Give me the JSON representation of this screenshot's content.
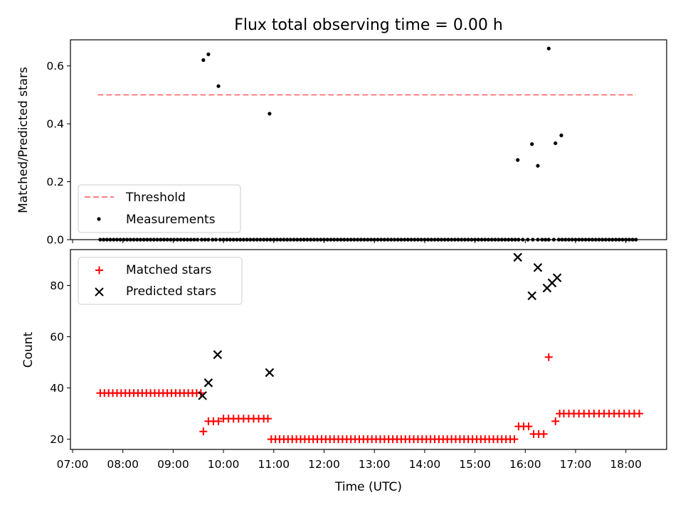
{
  "chart_data": [
    {
      "type": "scatter",
      "title": "Flux total observing time = 0.00 h",
      "xlabel": "",
      "ylabel": "Matched/Predicted stars",
      "ylim": [
        0,
        0.69
      ],
      "yticks": [
        "0.0",
        "0.2",
        "0.4",
        "0.6"
      ],
      "threshold": 0.5,
      "threshold_x_range": [
        "07:30",
        "18:12"
      ],
      "colors": {
        "threshold": "#ff7f7f",
        "measurements": "#000000"
      },
      "legend": {
        "placement": "lower-left",
        "entries": [
          "Threshold",
          "Measurements"
        ]
      },
      "series": [
        {
          "name": "Measurements",
          "x": [
            "07:33",
            "07:37",
            "07:41",
            "07:45",
            "07:49",
            "07:53",
            "07:57",
            "08:01",
            "08:05",
            "08:09",
            "08:13",
            "08:17",
            "08:21",
            "08:25",
            "08:29",
            "08:33",
            "08:37",
            "08:41",
            "08:45",
            "08:49",
            "08:53",
            "08:57",
            "09:01",
            "09:05",
            "09:09",
            "09:13",
            "09:17",
            "09:21",
            "09:25",
            "09:29",
            "09:34",
            "09:38",
            "09:42",
            "09:47",
            "09:51",
            "09:56",
            "10:00",
            "10:04",
            "10:08",
            "10:12",
            "10:16",
            "10:20",
            "10:24",
            "10:28",
            "10:32",
            "10:36",
            "10:40",
            "10:44",
            "10:48",
            "10:52",
            "10:56",
            "11:00",
            "11:04",
            "11:08",
            "11:12",
            "11:16",
            "11:20",
            "11:24",
            "11:28",
            "11:32",
            "11:36",
            "11:40",
            "11:44",
            "11:48",
            "11:52",
            "11:56",
            "12:00",
            "12:04",
            "12:08",
            "12:12",
            "12:16",
            "12:20",
            "12:24",
            "12:28",
            "12:32",
            "12:36",
            "12:40",
            "12:44",
            "12:48",
            "12:52",
            "12:56",
            "13:00",
            "13:04",
            "13:08",
            "13:12",
            "13:16",
            "13:20",
            "13:24",
            "13:28",
            "13:32",
            "13:36",
            "13:40",
            "13:44",
            "13:48",
            "13:52",
            "13:56",
            "14:00",
            "14:04",
            "14:08",
            "14:12",
            "14:16",
            "14:20",
            "14:24",
            "14:28",
            "14:32",
            "14:36",
            "14:40",
            "14:44",
            "14:48",
            "14:52",
            "14:56",
            "15:00",
            "15:04",
            "15:08",
            "15:12",
            "15:16",
            "15:20",
            "15:24",
            "15:28",
            "15:32",
            "15:36",
            "15:40",
            "15:44",
            "15:48",
            "15:52",
            "15:57",
            "16:03",
            "16:09",
            "16:15",
            "16:20",
            "16:24",
            "16:28",
            "16:34",
            "16:40",
            "16:44",
            "16:48",
            "16:52",
            "16:56",
            "17:00",
            "17:04",
            "17:08",
            "17:12",
            "17:16",
            "17:20",
            "17:24",
            "17:28",
            "17:32",
            "17:36",
            "17:40",
            "17:44",
            "17:48",
            "17:52",
            "17:56",
            "18:00",
            "18:04",
            "18:08",
            "18:12",
            "09:36",
            "09:42",
            "09:54",
            "10:55",
            "15:51",
            "16:08",
            "16:15",
            "16:28",
            "16:36",
            "16:43"
          ],
          "y": [
            0,
            0,
            0,
            0,
            0,
            0,
            0,
            0,
            0,
            0,
            0,
            0,
            0,
            0,
            0,
            0,
            0,
            0,
            0,
            0,
            0,
            0,
            0,
            0,
            0,
            0,
            0,
            0,
            0,
            0,
            0,
            0,
            0,
            0,
            0,
            0,
            0,
            0,
            0,
            0,
            0,
            0,
            0,
            0,
            0,
            0,
            0,
            0,
            0,
            0,
            0,
            0,
            0,
            0,
            0,
            0,
            0,
            0,
            0,
            0,
            0,
            0,
            0,
            0,
            0,
            0,
            0,
            0,
            0,
            0,
            0,
            0,
            0,
            0,
            0,
            0,
            0,
            0,
            0,
            0,
            0,
            0,
            0,
            0,
            0,
            0,
            0,
            0,
            0,
            0,
            0,
            0,
            0,
            0,
            0,
            0,
            0,
            0,
            0,
            0,
            0,
            0,
            0,
            0,
            0,
            0,
            0,
            0,
            0,
            0,
            0,
            0,
            0,
            0,
            0,
            0,
            0,
            0,
            0,
            0,
            0,
            0,
            0,
            0,
            0,
            0,
            0,
            0,
            0,
            0,
            0,
            0,
            0,
            0,
            0,
            0,
            0,
            0,
            0,
            0,
            0,
            0,
            0,
            0,
            0,
            0,
            0,
            0,
            0,
            0,
            0,
            0,
            0,
            0,
            0,
            0,
            0,
            0.62,
            0.64,
            0.53,
            0.435,
            0.275,
            0.33,
            0.255,
            0.66,
            0.333,
            0.36
          ]
        },
        {
          "name": "Threshold",
          "x": [
            "07:30",
            "18:12"
          ],
          "y": [
            0.5,
            0.5
          ]
        }
      ]
    },
    {
      "type": "scatter",
      "title": "",
      "xlabel": "Time (UTC)",
      "ylabel": "Count",
      "ylim": [
        16,
        94
      ],
      "yticks": [
        "20",
        "40",
        "60",
        "80"
      ],
      "xticks": [
        "07:00",
        "08:00",
        "09:00",
        "10:00",
        "11:00",
        "12:00",
        "13:00",
        "14:00",
        "15:00",
        "16:00",
        "17:00",
        "18:00"
      ],
      "colors": {
        "matched": "#ff0000",
        "predicted": "#000000"
      },
      "legend": {
        "placement": "top-left",
        "entries": [
          "Matched stars",
          "Predicted stars"
        ]
      },
      "series": [
        {
          "name": "Matched stars",
          "x": [
            "07:33",
            "07:38",
            "07:43",
            "07:48",
            "07:53",
            "07:58",
            "08:03",
            "08:08",
            "08:13",
            "08:18",
            "08:23",
            "08:28",
            "08:33",
            "08:38",
            "08:43",
            "08:48",
            "08:53",
            "08:58",
            "09:03",
            "09:08",
            "09:13",
            "09:18",
            "09:23",
            "09:28",
            "09:33",
            "09:36",
            "09:42",
            "09:48",
            "09:54",
            "10:00",
            "10:06",
            "10:12",
            "10:18",
            "10:24",
            "10:30",
            "10:36",
            "10:42",
            "10:48",
            "10:53",
            "10:57",
            "11:02",
            "11:07",
            "11:12",
            "11:17",
            "11:22",
            "11:27",
            "11:32",
            "11:37",
            "11:42",
            "11:47",
            "11:52",
            "11:57",
            "12:02",
            "12:07",
            "12:12",
            "12:17",
            "12:22",
            "12:27",
            "12:32",
            "12:37",
            "12:42",
            "12:47",
            "12:52",
            "12:57",
            "13:02",
            "13:07",
            "13:12",
            "13:17",
            "13:22",
            "13:27",
            "13:32",
            "13:37",
            "13:42",
            "13:47",
            "13:52",
            "13:57",
            "14:02",
            "14:07",
            "14:12",
            "14:17",
            "14:22",
            "14:27",
            "14:32",
            "14:37",
            "14:42",
            "14:47",
            "14:52",
            "14:57",
            "15:02",
            "15:07",
            "15:12",
            "15:17",
            "15:22",
            "15:27",
            "15:32",
            "15:37",
            "15:42",
            "15:47",
            "15:52",
            "15:58",
            "16:04",
            "16:10",
            "16:16",
            "16:22",
            "16:28",
            "16:36",
            "16:41",
            "16:46",
            "16:52",
            "16:58",
            "17:04",
            "17:10",
            "17:16",
            "17:22",
            "17:28",
            "17:34",
            "17:40",
            "17:46",
            "17:52",
            "17:58",
            "18:04",
            "18:10",
            "18:16"
          ],
          "values": [
            38,
            38,
            38,
            38,
            38,
            38,
            38,
            38,
            38,
            38,
            38,
            38,
            38,
            38,
            38,
            38,
            38,
            38,
            38,
            38,
            38,
            38,
            38,
            38,
            38,
            23,
            27,
            27,
            27,
            28,
            28,
            28,
            28,
            28,
            28,
            28,
            28,
            28,
            28,
            20,
            20,
            20,
            20,
            20,
            20,
            20,
            20,
            20,
            20,
            20,
            20,
            20,
            20,
            20,
            20,
            20,
            20,
            20,
            20,
            20,
            20,
            20,
            20,
            20,
            20,
            20,
            20,
            20,
            20,
            20,
            20,
            20,
            20,
            20,
            20,
            20,
            20,
            20,
            20,
            20,
            20,
            20,
            20,
            20,
            20,
            20,
            20,
            20,
            20,
            20,
            20,
            20,
            20,
            20,
            20,
            20,
            20,
            20,
            25,
            25,
            25,
            22,
            22,
            22,
            52,
            27,
            30,
            30,
            30,
            30,
            30,
            30,
            30,
            30,
            30,
            30,
            30,
            30,
            30,
            30,
            30,
            30,
            30
          ]
        },
        {
          "name": "Predicted stars",
          "x": [
            "09:35",
            "09:42",
            "09:53",
            "10:55",
            "15:51",
            "16:08",
            "16:15",
            "16:26",
            "16:32",
            "16:38"
          ],
          "values": [
            37,
            42,
            53,
            46,
            91,
            76,
            87,
            79,
            81,
            83
          ]
        }
      ]
    }
  ]
}
